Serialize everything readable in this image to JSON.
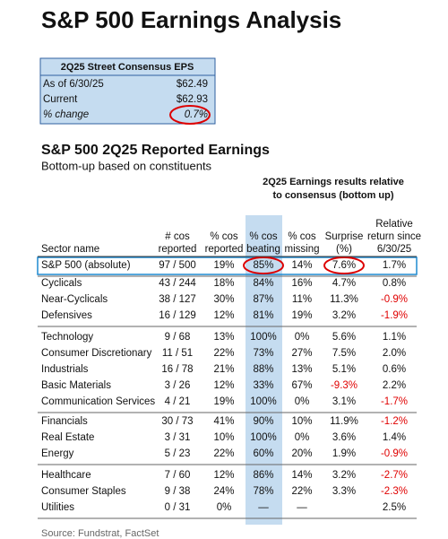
{
  "title": "S&P 500 Earnings Analysis",
  "eps_box": {
    "header": "2Q25 Street Consensus EPS",
    "rows": [
      [
        "As of 6/30/25",
        "$62.49"
      ],
      [
        "Current",
        "$62.93"
      ],
      [
        "% change",
        "0.7%"
      ]
    ]
  },
  "table": {
    "title": "S&P 500 2Q25 Reported Earnings",
    "subtitle": "Bottom-up based on constituents",
    "group_header": [
      "2Q25 Earnings results relative",
      "to consensus (bottom up)"
    ],
    "columns": [
      [
        "Sector name"
      ],
      [
        "# cos",
        "reported"
      ],
      [
        "% cos",
        "reported"
      ],
      [
        "% cos",
        "beating"
      ],
      [
        "% cos",
        "missing"
      ],
      [
        "Surprise",
        "(%)"
      ],
      [
        "Relative",
        "return since",
        "6/30/25"
      ]
    ],
    "groups": [
      [
        [
          "S&P 500 (absolute)",
          "97 / 500",
          "19%",
          "85%",
          "14%",
          "7.6%",
          "1.7%"
        ]
      ],
      [
        [
          "Cyclicals",
          "43 / 244",
          "18%",
          "84%",
          "16%",
          "4.7%",
          "0.8%"
        ],
        [
          "Near-Cyclicals",
          "38 / 127",
          "30%",
          "87%",
          "11%",
          "11.3%",
          "-0.9%"
        ],
        [
          "Defensives",
          "16 / 129",
          "12%",
          "81%",
          "19%",
          "3.2%",
          "-1.9%"
        ]
      ],
      [
        [
          "Technology",
          "9 / 68",
          "13%",
          "100%",
          "0%",
          "5.6%",
          "1.1%"
        ],
        [
          "Consumer Discretionary",
          "11 / 51",
          "22%",
          "73%",
          "27%",
          "7.5%",
          "2.0%"
        ],
        [
          "Industrials",
          "16 / 78",
          "21%",
          "88%",
          "13%",
          "5.1%",
          "0.6%"
        ],
        [
          "Basic Materials",
          "3 / 26",
          "12%",
          "33%",
          "67%",
          "-9.3%",
          "2.2%"
        ],
        [
          "Communication Services",
          "4 / 21",
          "19%",
          "100%",
          "0%",
          "3.1%",
          "-1.7%"
        ]
      ],
      [
        [
          "Financials",
          "30 / 73",
          "41%",
          "90%",
          "10%",
          "11.9%",
          "-1.2%"
        ],
        [
          "Real Estate",
          "3 / 31",
          "10%",
          "100%",
          "0%",
          "3.6%",
          "1.4%"
        ],
        [
          "Energy",
          "5 / 23",
          "22%",
          "60%",
          "20%",
          "1.9%",
          "-0.9%"
        ]
      ],
      [
        [
          "Healthcare",
          "7 / 60",
          "12%",
          "86%",
          "14%",
          "3.2%",
          "-2.7%"
        ],
        [
          "Consumer Staples",
          "9 / 38",
          "24%",
          "78%",
          "22%",
          "3.3%",
          "-2.3%"
        ],
        [
          "Utilities",
          "0 / 31",
          "0%",
          "—",
          "—",
          "",
          "2.5%"
        ]
      ]
    ]
  },
  "source": "Source: Fundstrat, FactSet"
}
